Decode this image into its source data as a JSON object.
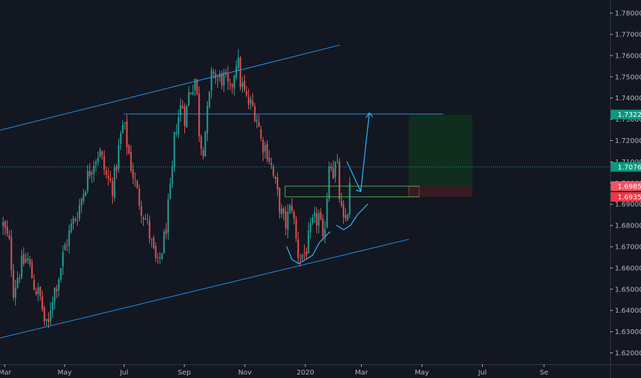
{
  "chart_data": {
    "type": "candlestick",
    "title": "",
    "instrument": "",
    "ylim": [
      1.615,
      1.785
    ],
    "y_ticks": [
      "1.62000",
      "1.63000",
      "1.64000",
      "1.65000",
      "1.66000",
      "1.67000",
      "1.68000",
      "1.69000",
      "1.70000",
      "1.71000",
      "1.72000",
      "1.73000",
      "1.74000",
      "1.75000",
      "1.76000",
      "1.77000",
      "1.78000"
    ],
    "x_ticks": [
      {
        "label": "Mar",
        "pos": 0.5
      },
      {
        "label": "May",
        "pos": 17.9
      },
      {
        "label": "Jul",
        "pos": 35.2
      },
      {
        "label": "Sep",
        "pos": 52.7
      },
      {
        "label": "Nov",
        "pos": 70.3
      },
      {
        "label": "2020",
        "pos": 87.9
      },
      {
        "label": "Mar",
        "pos": 104.2
      },
      {
        "label": "May",
        "pos": 121.8
      },
      {
        "label": "Jul",
        "pos": 139.4
      },
      {
        "label": "Se",
        "pos": 157.3
      }
    ],
    "colors": {
      "up": "#26a69a",
      "down": "#ef5350",
      "line": "#2196f3",
      "background": "#131722",
      "axis_text": "#b2b5be"
    },
    "price_path": [
      [
        0,
        1.68
      ],
      [
        2,
        1.67
      ],
      [
        3,
        1.65
      ],
      [
        5,
        1.66
      ],
      [
        7,
        1.665
      ],
      [
        9,
        1.652
      ],
      [
        11,
        1.645
      ],
      [
        12,
        1.635
      ],
      [
        13,
        1.63
      ],
      [
        14,
        1.645
      ],
      [
        16,
        1.655
      ],
      [
        18,
        1.67
      ],
      [
        20,
        1.68
      ],
      [
        22,
        1.688
      ],
      [
        24,
        1.7
      ],
      [
        26,
        1.71
      ],
      [
        28,
        1.715
      ],
      [
        30,
        1.703
      ],
      [
        32,
        1.698
      ],
      [
        34,
        1.72
      ],
      [
        35,
        1.728
      ],
      [
        37,
        1.71
      ],
      [
        39,
        1.695
      ],
      [
        40,
        1.69
      ],
      [
        42,
        1.68
      ],
      [
        44,
        1.665
      ],
      [
        45,
        1.66
      ],
      [
        47,
        1.675
      ],
      [
        49,
        1.7
      ],
      [
        50,
        1.725
      ],
      [
        52,
        1.738
      ],
      [
        53,
        1.73
      ],
      [
        54,
        1.742
      ],
      [
        56,
        1.75
      ],
      [
        57,
        1.725
      ],
      [
        58,
        1.715
      ],
      [
        60,
        1.74
      ],
      [
        61,
        1.755
      ],
      [
        62,
        1.748
      ],
      [
        64,
        1.75
      ],
      [
        66,
        1.742
      ],
      [
        68,
        1.76
      ],
      [
        69,
        1.748
      ],
      [
        71,
        1.738
      ],
      [
        73,
        1.735
      ],
      [
        74,
        1.73
      ],
      [
        75,
        1.72
      ],
      [
        77,
        1.715
      ],
      [
        79,
        1.7
      ],
      [
        81,
        1.685
      ],
      [
        82,
        1.68
      ],
      [
        84,
        1.69
      ],
      [
        85,
        1.675
      ],
      [
        86,
        1.665
      ],
      [
        88,
        1.668
      ],
      [
        90,
        1.68
      ],
      [
        92,
        1.685
      ],
      [
        93,
        1.67
      ],
      [
        94,
        1.69
      ],
      [
        95,
        1.715
      ],
      [
        96,
        1.705
      ],
      [
        97,
        1.71
      ],
      [
        98,
        1.69
      ],
      [
        99,
        1.68
      ],
      [
        100,
        1.685
      ],
      [
        101,
        1.7
      ]
    ],
    "annotations": {
      "upper_channel": [
        [
          -1,
          1.7248
        ],
        [
          98,
          1.765
        ]
      ],
      "lower_channel": [
        [
          -1,
          1.627
        ],
        [
          118,
          1.6735
        ]
      ],
      "resistance_line": {
        "y": 1.7325,
        "x": [
          35,
          128
        ]
      },
      "current_price_line": {
        "y": 1.7076
      },
      "zone_top": {
        "y": 1.6985,
        "x": [
          82,
          121
        ]
      },
      "zone_bottom": {
        "y": 1.6935,
        "x": [
          82,
          121
        ]
      },
      "entry_box": {
        "x": [
          118,
          121
        ],
        "y": [
          1.6935,
          1.6985
        ]
      },
      "take_profit_box": {
        "x": [
          118,
          136.5
        ],
        "y": [
          1.6985,
          1.7322
        ]
      },
      "stop_loss_box": {
        "x": [
          118,
          136.5
        ],
        "y": [
          1.6935,
          1.6985
        ]
      },
      "projection_path": [
        [
          100,
          1.71
        ],
        [
          104,
          1.696
        ],
        [
          106.5,
          1.733
        ]
      ],
      "cup_left": [
        [
          82.5,
          1.67
        ],
        [
          84,
          1.664
        ],
        [
          86,
          1.662
        ],
        [
          88,
          1.664
        ],
        [
          90,
          1.666
        ],
        [
          92,
          1.672
        ],
        [
          95,
          1.677
        ]
      ],
      "cup_right": [
        [
          97,
          1.68
        ],
        [
          99,
          1.678
        ],
        [
          101,
          1.68
        ],
        [
          103,
          1.685
        ],
        [
          106,
          1.69
        ]
      ]
    },
    "price_tags": [
      {
        "label": "1.73227",
        "y": 1.73227,
        "color": "#089981"
      },
      {
        "label": "1.70760",
        "y": 1.7076,
        "color": "#089981"
      },
      {
        "label": "1.69853",
        "y": 1.69853,
        "color": "#f7525f"
      },
      {
        "label": "1.69350",
        "y": 1.6935,
        "color": "#f23645"
      }
    ]
  }
}
